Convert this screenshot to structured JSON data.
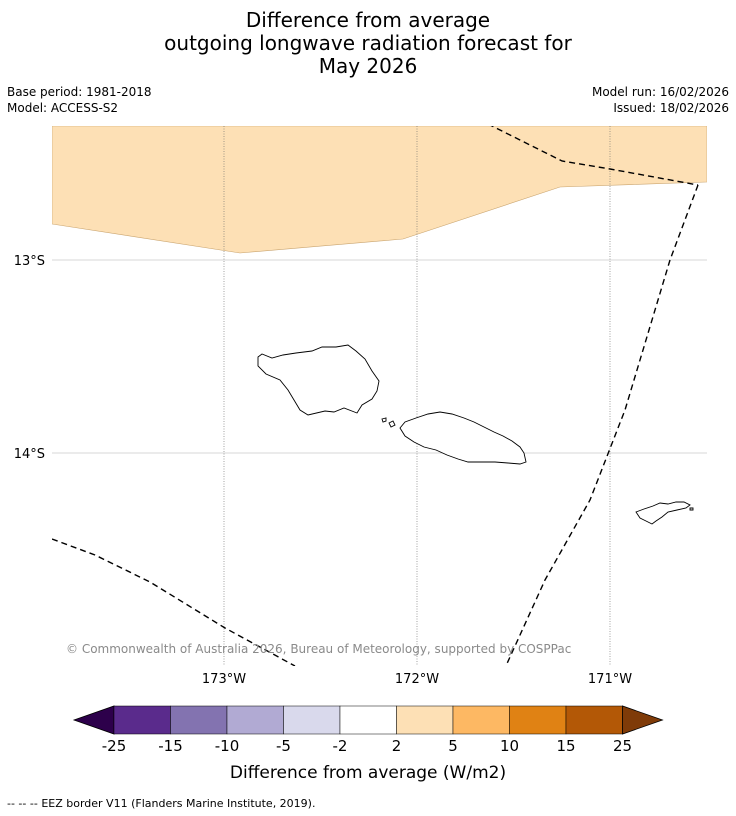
{
  "title": {
    "line1": "Difference from average",
    "line2": "outgoing longwave radiation forecast for",
    "line3": "May 2026"
  },
  "info": {
    "base_period": "Base period: 1981-2018",
    "model": "Model: ACCESS-S2",
    "model_run": "Model run: 16/02/2026",
    "issued": "Issued: 18/02/2026"
  },
  "map": {
    "lat_labels": [
      "13°S",
      "14°S"
    ],
    "lon_labels": [
      "173°W",
      "172°W",
      "171°W"
    ],
    "anomaly_color": "#fde0b5",
    "regions": [
      "Samoa",
      "American Samoa"
    ],
    "copyright": "© Commonwealth of Australia 2026, Bureau of Meteorology, supported by COSPPac"
  },
  "colorbar": {
    "label": "Difference from average (W/m2)",
    "ticks": [
      "-25",
      "-15",
      "-10",
      "-5",
      "-2",
      "2",
      "5",
      "10",
      "15",
      "25"
    ],
    "colors": [
      "#2d004b",
      "#5a2b8c",
      "#8373b0",
      "#b1aad3",
      "#d9d9ec",
      "#ffffff",
      "#fde0b5",
      "#fdb863",
      "#e08214",
      "#b35806",
      "#7f3b08"
    ]
  },
  "legend": {
    "eez_symbol": "-- -- --",
    "eez_text": "EEZ border V11 (Flanders Marine Institute, 2019)."
  }
}
